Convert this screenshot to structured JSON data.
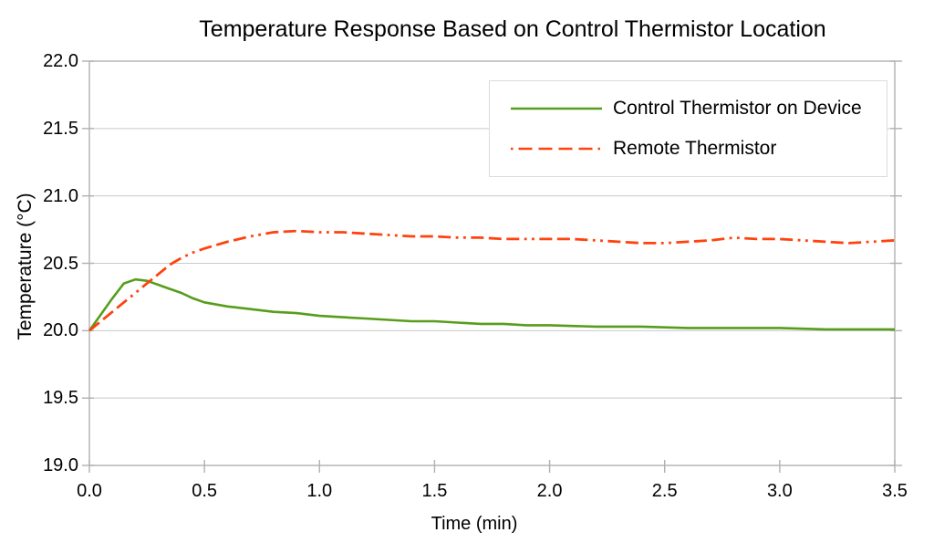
{
  "chart_data": {
    "type": "line",
    "title": "Temperature Response Based on Control Thermistor Location",
    "xlabel": "Time (min)",
    "ylabel": "Temperature (°C)",
    "xlim": [
      0,
      3.5
    ],
    "ylim": [
      19.0,
      22.0
    ],
    "x_tick_values": [
      0.0,
      0.5,
      1.0,
      1.5,
      2.0,
      2.5,
      3.0,
      3.5
    ],
    "x_tick_labels": [
      "0.0",
      "0.5",
      "1.0",
      "1.5",
      "2.0",
      "2.5",
      "3.0",
      "3.5"
    ],
    "y_tick_values": [
      19.0,
      19.5,
      20.0,
      20.5,
      21.0,
      21.5,
      22.0
    ],
    "y_tick_labels": [
      "19.0",
      "19.5",
      "20.0",
      "20.5",
      "21.0",
      "21.5",
      "22.0"
    ],
    "grid": "horizontal-only",
    "legend_position": "top-right-inside",
    "colors": {
      "grid": "#c9c9c9",
      "axis": "#b0b0b0",
      "text": "#000000",
      "legend_border": "#dcdcdc",
      "background": "#ffffff"
    },
    "series": [
      {
        "name": "Control Thermistor on Device",
        "color": "#579d1c",
        "line_style": "solid",
        "x": [
          0.0,
          0.05,
          0.1,
          0.15,
          0.2,
          0.25,
          0.3,
          0.35,
          0.4,
          0.45,
          0.5,
          0.6,
          0.7,
          0.8,
          0.9,
          1.0,
          1.1,
          1.2,
          1.3,
          1.4,
          1.5,
          1.6,
          1.7,
          1.8,
          1.9,
          2.0,
          2.2,
          2.4,
          2.6,
          2.8,
          3.0,
          3.2,
          3.5
        ],
        "y": [
          20.0,
          20.12,
          20.24,
          20.35,
          20.38,
          20.37,
          20.34,
          20.31,
          20.28,
          20.24,
          20.21,
          20.18,
          20.16,
          20.14,
          20.13,
          20.11,
          20.1,
          20.09,
          20.08,
          20.07,
          20.07,
          20.06,
          20.05,
          20.05,
          20.04,
          20.04,
          20.03,
          20.03,
          20.02,
          20.02,
          20.02,
          20.01,
          20.01
        ]
      },
      {
        "name": "Remote Thermistor",
        "color": "#ff420e",
        "line_style": "dash-dash-dash-dot-dot",
        "x": [
          0.0,
          0.05,
          0.1,
          0.15,
          0.2,
          0.25,
          0.3,
          0.35,
          0.4,
          0.45,
          0.5,
          0.6,
          0.7,
          0.8,
          0.9,
          1.0,
          1.1,
          1.2,
          1.3,
          1.4,
          1.5,
          1.6,
          1.7,
          1.8,
          1.9,
          2.0,
          2.1,
          2.2,
          2.3,
          2.4,
          2.5,
          2.6,
          2.7,
          2.8,
          2.9,
          3.0,
          3.1,
          3.2,
          3.3,
          3.4,
          3.5
        ],
        "y": [
          20.0,
          20.07,
          20.14,
          20.21,
          20.28,
          20.35,
          20.42,
          20.49,
          20.54,
          20.58,
          20.61,
          20.66,
          20.7,
          20.73,
          20.74,
          20.73,
          20.73,
          20.72,
          20.71,
          20.7,
          20.7,
          20.69,
          20.69,
          20.68,
          20.68,
          20.68,
          20.68,
          20.67,
          20.66,
          20.65,
          20.65,
          20.66,
          20.67,
          20.69,
          20.68,
          20.68,
          20.67,
          20.66,
          20.65,
          20.66,
          20.67
        ]
      }
    ]
  }
}
